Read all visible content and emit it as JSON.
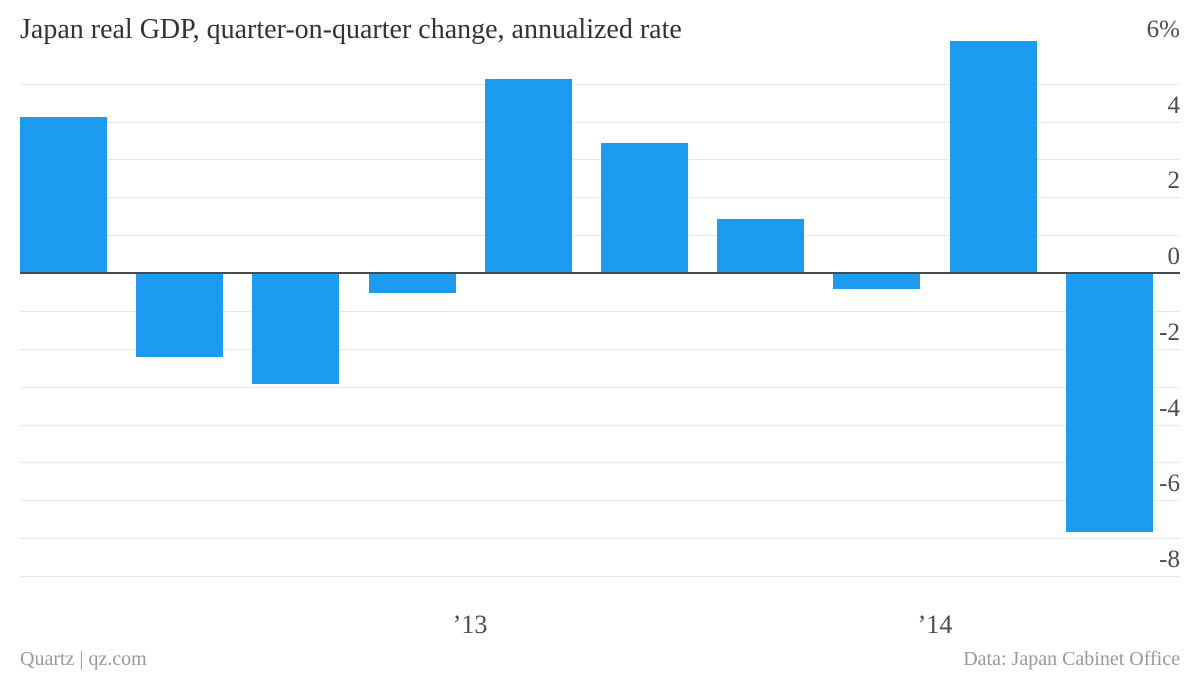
{
  "header": {
    "title": "Japan real GDP, quarter-on-quarter change, annualized rate"
  },
  "footer": {
    "left": "Quartz | qz.com",
    "right": "Data: Japan Cabinet Office"
  },
  "colors": {
    "background": "#ffffff",
    "bar": "#1d9bf0",
    "title_text": "#333333",
    "axis_text": "#4d4d4d",
    "gridline": "#e6e6e6",
    "zero_line": "#4a4a4a",
    "footer_text": "#999999"
  },
  "chart_data": {
    "type": "bar",
    "title": "Japan real GDP, quarter-on-quarter change, annualized rate",
    "values": [
      4.1,
      -2.2,
      -2.9,
      -0.5,
      5.1,
      3.4,
      1.4,
      -0.4,
      6.1,
      -6.8
    ],
    "ylim": [
      -8,
      6
    ],
    "grid": true,
    "gridline_interval": 1,
    "y_ticks": [
      {
        "value": 6,
        "label": "6%"
      },
      {
        "value": 4,
        "label": "4"
      },
      {
        "value": 2,
        "label": "2"
      },
      {
        "value": 0,
        "label": "0"
      },
      {
        "value": -2,
        "label": "-2"
      },
      {
        "value": -4,
        "label": "-4"
      },
      {
        "value": -6,
        "label": "-6"
      },
      {
        "value": -8,
        "label": "-8"
      }
    ],
    "x_ticks": [
      {
        "label": "’13",
        "boundary_index": 4
      },
      {
        "label": "’14",
        "boundary_index": 8
      }
    ],
    "legend_position": "none"
  }
}
